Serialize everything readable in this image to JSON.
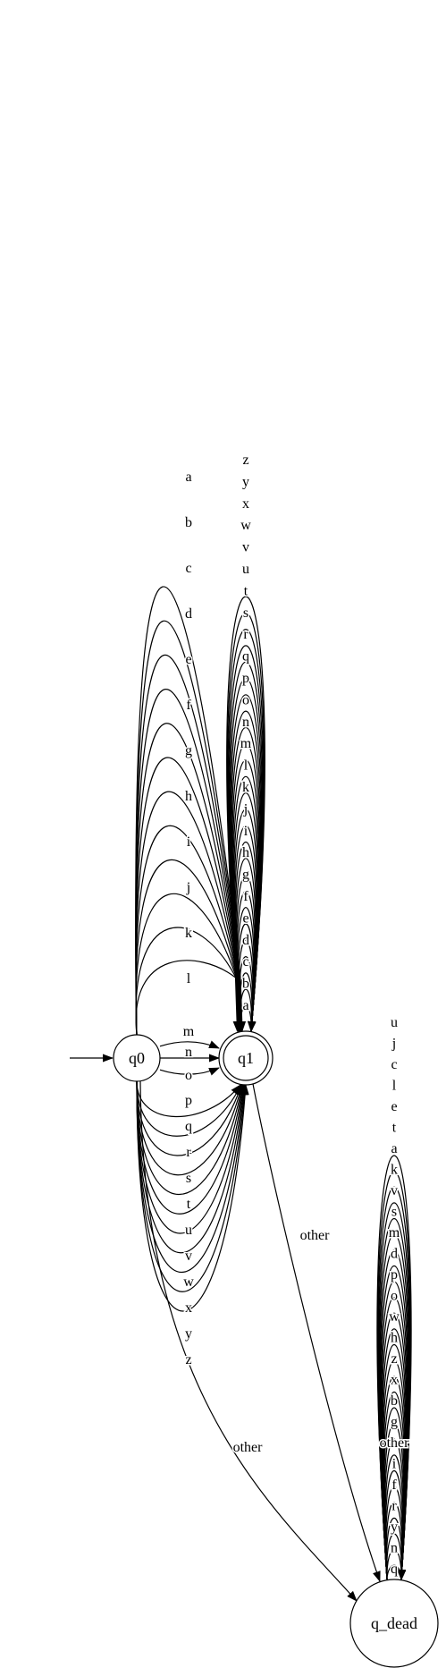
{
  "states": {
    "q0": {
      "label": "q0",
      "initial": true,
      "accepting": false
    },
    "q1": {
      "label": "q1",
      "initial": false,
      "accepting": true
    },
    "q_dead": {
      "label": "q_dead",
      "initial": false,
      "accepting": false
    }
  },
  "edge_groups": {
    "q0_to_q1_upper": [
      "a",
      "b",
      "c",
      "d",
      "e",
      "f",
      "g",
      "h",
      "i",
      "j",
      "k",
      "l"
    ],
    "q0_to_q1_middle": [
      "m",
      "n",
      "o"
    ],
    "q0_to_q1_lower": [
      "p",
      "q",
      "r",
      "s",
      "t",
      "u",
      "v",
      "w",
      "x",
      "y",
      "z"
    ],
    "q1_self_loops": [
      "a",
      "b",
      "c",
      "d",
      "e",
      "f",
      "g",
      "h",
      "i",
      "j",
      "k",
      "l",
      "m",
      "n",
      "o",
      "p",
      "q",
      "r",
      "s",
      "t",
      "u",
      "v",
      "w",
      "x",
      "y",
      "z"
    ],
    "q_dead_self_loops": [
      "u",
      "j",
      "c",
      "l",
      "e",
      "t",
      "a",
      "k",
      "v",
      "s",
      "m",
      "d",
      "p",
      "o",
      "w",
      "h",
      "z",
      "x",
      "b",
      "g",
      "other",
      "i",
      "f",
      "r",
      "y",
      "n",
      "q"
    ]
  },
  "other_edges": {
    "q0_to_dead": "other",
    "q1_to_dead": "other"
  }
}
